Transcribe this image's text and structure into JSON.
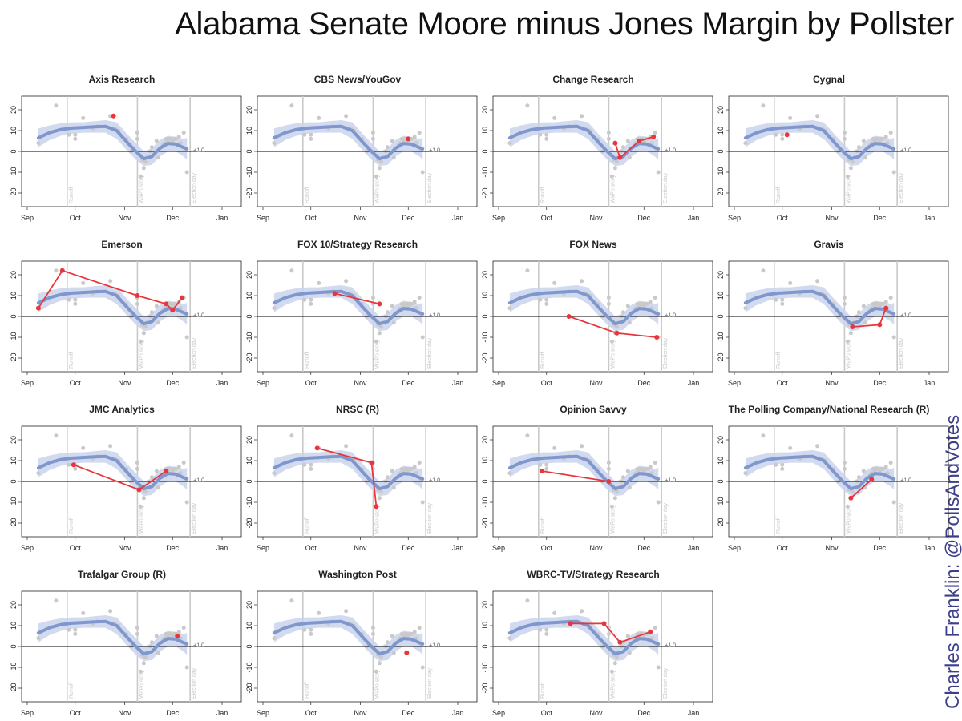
{
  "title": "Alabama Senate Moore minus Jones Margin by Pollster",
  "credit": "Charles Franklin: @PollsAndVotes",
  "colors": {
    "band": "#c9d3ec",
    "trend": "#7f97cc",
    "points": "#c9c9c9",
    "pollster": "#e8373c",
    "event_line": "#c9c9c9",
    "zero_line": "#000000"
  },
  "chart_data": {
    "type": "line",
    "x_axis": {
      "domain": [
        "2017-09-01",
        "2018-01-01"
      ],
      "ticks": [
        {
          "date": "2017-09-01",
          "label": "Sep"
        },
        {
          "date": "2017-10-01",
          "label": "Oct"
        },
        {
          "date": "2017-11-01",
          "label": "Nov"
        },
        {
          "date": "2017-12-01",
          "label": "Dec"
        },
        {
          "date": "2018-01-01",
          "label": "Jan"
        }
      ]
    },
    "y_axis": {
      "ylim": [
        -25,
        25
      ],
      "ticks": [
        -20,
        -10,
        0,
        10,
        20
      ]
    },
    "event_lines": [
      {
        "date": "2017-09-26",
        "label": "Runoff"
      },
      {
        "date": "2017-11-09",
        "label": "WaPo story"
      },
      {
        "date": "2017-12-12",
        "label": "Election day"
      }
    ],
    "reference_label": "+1.0",
    "trend": {
      "x": [
        "2017-09-08",
        "2017-09-15",
        "2017-09-22",
        "2017-09-29",
        "2017-10-06",
        "2017-10-13",
        "2017-10-20",
        "2017-10-27",
        "2017-11-03",
        "2017-11-08",
        "2017-11-13",
        "2017-11-18",
        "2017-11-23",
        "2017-11-28",
        "2017-12-03",
        "2017-12-08",
        "2017-12-10"
      ],
      "y": [
        6.5,
        9,
        10.5,
        11.2,
        11.5,
        11.8,
        12,
        10,
        4,
        0,
        -3.5,
        -2.5,
        1.5,
        3.8,
        3.5,
        1.8,
        1.2
      ],
      "lower": [
        2,
        5.5,
        7.5,
        8.5,
        9,
        9,
        9,
        6,
        0,
        -4,
        -7,
        -6.5,
        -2.5,
        0,
        0,
        -2.5,
        -4
      ],
      "upper": [
        11,
        12.5,
        13.5,
        14,
        14,
        14.5,
        15,
        14,
        8,
        4,
        0,
        1.5,
        5.5,
        7.5,
        7,
        6,
        6.5
      ]
    },
    "all_polls": {
      "x": [
        "2017-09-08",
        "2017-09-19",
        "2017-09-27",
        "2017-10-01",
        "2017-10-01",
        "2017-10-06",
        "2017-10-12",
        "2017-10-15",
        "2017-10-23",
        "2017-10-26",
        "2017-10-28",
        "2017-11-02",
        "2017-11-05",
        "2017-11-09",
        "2017-11-09",
        "2017-11-11",
        "2017-11-12",
        "2017-11-13",
        "2017-11-14",
        "2017-11-15",
        "2017-11-17",
        "2017-11-18",
        "2017-11-21",
        "2017-11-22",
        "2017-11-25",
        "2017-11-26",
        "2017-11-27",
        "2017-11-28",
        "2017-11-29",
        "2017-11-30",
        "2017-12-01",
        "2017-12-02",
        "2017-12-03",
        "2017-12-04",
        "2017-12-05",
        "2017-12-06",
        "2017-12-08",
        "2017-12-09",
        "2017-12-10"
      ],
      "y": [
        4,
        22,
        8,
        8,
        6,
        16,
        11,
        12,
        17,
        11,
        10,
        6,
        0,
        9,
        6,
        -12,
        -4,
        -8,
        -5,
        -3,
        0,
        2,
        5,
        -3,
        3,
        4,
        6,
        5,
        6,
        6,
        5,
        6,
        6,
        3,
        7,
        4,
        9,
        1,
        -10
      ]
    },
    "panels": [
      {
        "pollster": "Axis Research",
        "x": [
          "2017-10-25"
        ],
        "y": [
          17
        ]
      },
      {
        "pollster": "CBS News/YouGov",
        "x": [
          "2017-12-01"
        ],
        "y": [
          6
        ]
      },
      {
        "pollster": "Change Research",
        "x": [
          "2017-11-13",
          "2017-11-16",
          "2017-11-28",
          "2017-12-07"
        ],
        "y": [
          4,
          -3,
          5,
          7
        ]
      },
      {
        "pollster": "Cygnal",
        "x": [
          "2017-10-04"
        ],
        "y": [
          8
        ]
      },
      {
        "pollster": "Emerson",
        "x": [
          "2017-09-08",
          "2017-09-23",
          "2017-11-09",
          "2017-11-27",
          "2017-12-01",
          "2017-12-07"
        ],
        "y": [
          4,
          22,
          10,
          6,
          3,
          9
        ]
      },
      {
        "pollster": "FOX 10/Strategy Research",
        "x": [
          "2017-10-16",
          "2017-11-13"
        ],
        "y": [
          11,
          6
        ]
      },
      {
        "pollster": "FOX News",
        "x": [
          "2017-10-15",
          "2017-11-14",
          "2017-12-09"
        ],
        "y": [
          0,
          -8,
          -10
        ]
      },
      {
        "pollster": "Gravis",
        "x": [
          "2017-11-14",
          "2017-12-01",
          "2017-12-05"
        ],
        "y": [
          -5,
          -4,
          4
        ]
      },
      {
        "pollster": "JMC Analytics",
        "x": [
          "2017-09-30",
          "2017-11-10",
          "2017-11-27"
        ],
        "y": [
          8,
          -4,
          5
        ]
      },
      {
        "pollster": "NRSC (R)",
        "x": [
          "2017-10-05",
          "2017-11-08",
          "2017-11-11"
        ],
        "y": [
          16,
          9,
          -12
        ]
      },
      {
        "pollster": "Opinion Savvy",
        "x": [
          "2017-09-28",
          "2017-11-09"
        ],
        "y": [
          5,
          0
        ]
      },
      {
        "pollster": "The Polling Company/National Research (R)",
        "x": [
          "2017-11-13",
          "2017-11-26"
        ],
        "y": [
          -8,
          1
        ]
      },
      {
        "pollster": "Trafalgar Group (R)",
        "x": [
          "2017-12-04"
        ],
        "y": [
          5
        ]
      },
      {
        "pollster": "Washington Post",
        "x": [
          "2017-11-30"
        ],
        "y": [
          -3
        ]
      },
      {
        "pollster": "WBRC-TV/Strategy Research",
        "x": [
          "2017-10-16",
          "2017-11-06",
          "2017-11-16",
          "2017-12-05"
        ],
        "y": [
          11,
          11,
          2,
          7
        ]
      }
    ]
  }
}
